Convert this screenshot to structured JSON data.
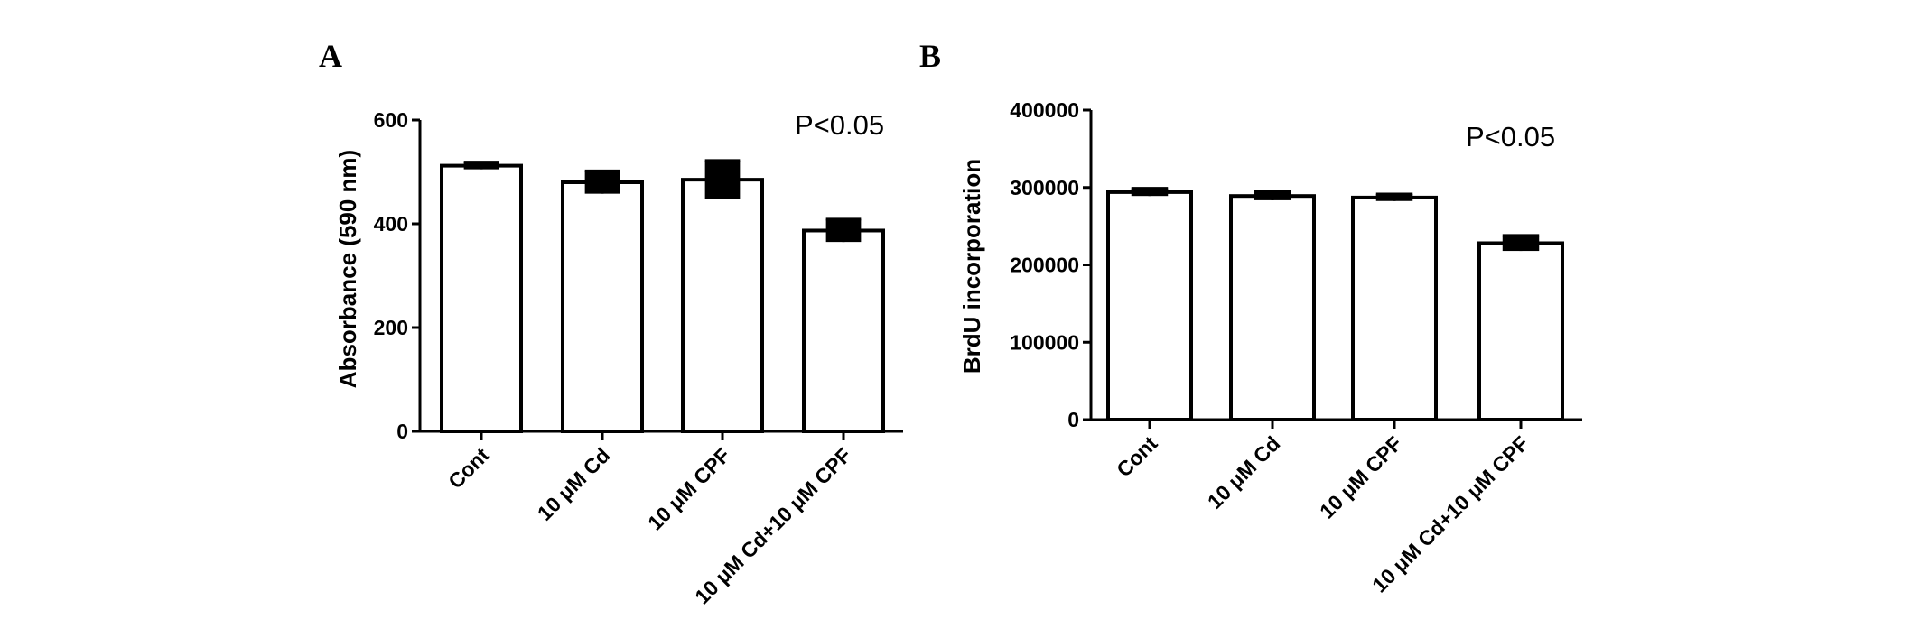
{
  "chart_data": [
    {
      "type": "bar",
      "panel_label": "A",
      "categories": [
        "Cont",
        "10 μM Cd",
        "10 μM CPF",
        "10 μM Cd+10 μM CPF"
      ],
      "values": [
        512,
        480,
        485,
        387
      ],
      "errors": [
        7,
        22,
        37,
        22
      ],
      "xlabel": "",
      "ylabel": "Absorbance (590 nm)",
      "ylim": [
        0,
        600
      ],
      "yticks": [
        0,
        200,
        400,
        600
      ],
      "ytick_labels": [
        "0",
        "200",
        "400",
        "600"
      ],
      "annotation": "P<0.05",
      "bar_fill": "#ffffff",
      "bar_stroke": "#000000",
      "grid": false
    },
    {
      "type": "bar",
      "panel_label": "B",
      "categories": [
        "Cont",
        "10 μM Cd",
        "10 μM CPF",
        "10 μM Cd+10 μM CPF"
      ],
      "values": [
        294000,
        289000,
        287000,
        228000
      ],
      "errors": [
        5000,
        5500,
        4500,
        10000
      ],
      "xlabel": "",
      "ylabel": "BrdU incorporation",
      "ylim": [
        0,
        400000
      ],
      "yticks": [
        0,
        100000,
        200000,
        300000,
        400000
      ],
      "ytick_labels": [
        "0",
        "100000",
        "200000",
        "300000",
        "400000"
      ],
      "annotation": "P<0.05",
      "bar_fill": "#ffffff",
      "bar_stroke": "#000000",
      "grid": false
    }
  ]
}
